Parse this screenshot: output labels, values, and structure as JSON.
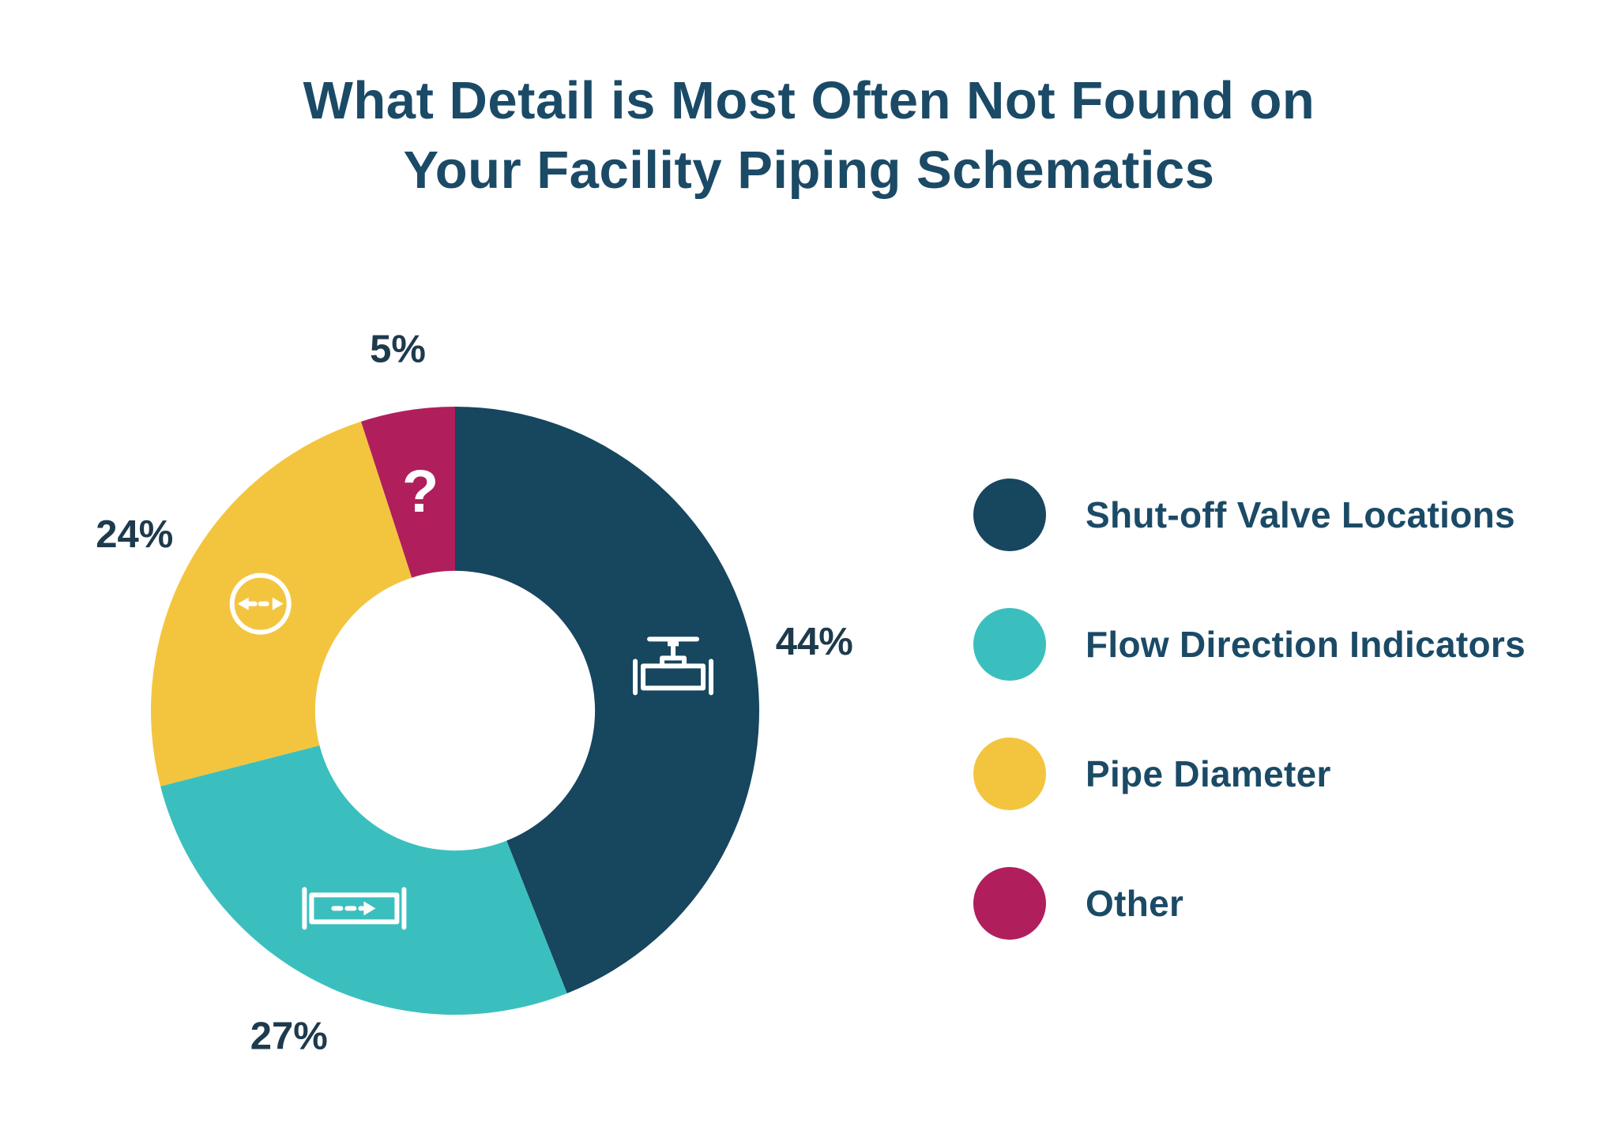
{
  "header": {
    "line1": "What Detail is Most Often Not Found on",
    "line2": "Your Facility Piping Schematics"
  },
  "chart_data": {
    "type": "pie",
    "subtype": "donut",
    "title": "What Detail is Most Often Not Found on Your Facility Piping Schematics",
    "unit": "%",
    "start_angle_deg": 0,
    "direction": "clockwise",
    "inner_radius_ratio": 0.46,
    "legend_position": "right",
    "slices": [
      {
        "label": "Shut-off Valve Locations",
        "value": 44,
        "display": "44%",
        "color": "#17465F",
        "icon": "valve-icon"
      },
      {
        "label": "Flow Direction Indicators",
        "value": 27,
        "display": "27%",
        "color": "#3BBFBE",
        "icon": "pipe-flow-icon"
      },
      {
        "label": "Pipe Diameter",
        "value": 24,
        "display": "24%",
        "color": "#F3C53F",
        "icon": "pipe-diameter-icon"
      },
      {
        "label": "Other",
        "value": 5,
        "display": "5%",
        "color": "#B01F5C",
        "icon": "question-mark-icon",
        "icon_glyph": "?"
      }
    ]
  },
  "colors": {
    "background": "#FFFFFF",
    "title_text": "#1B4A66",
    "percent_label_text": "#1E3A4D",
    "legend_label_text": "#1B4A66",
    "icon_stroke": "#FFFFFF"
  }
}
